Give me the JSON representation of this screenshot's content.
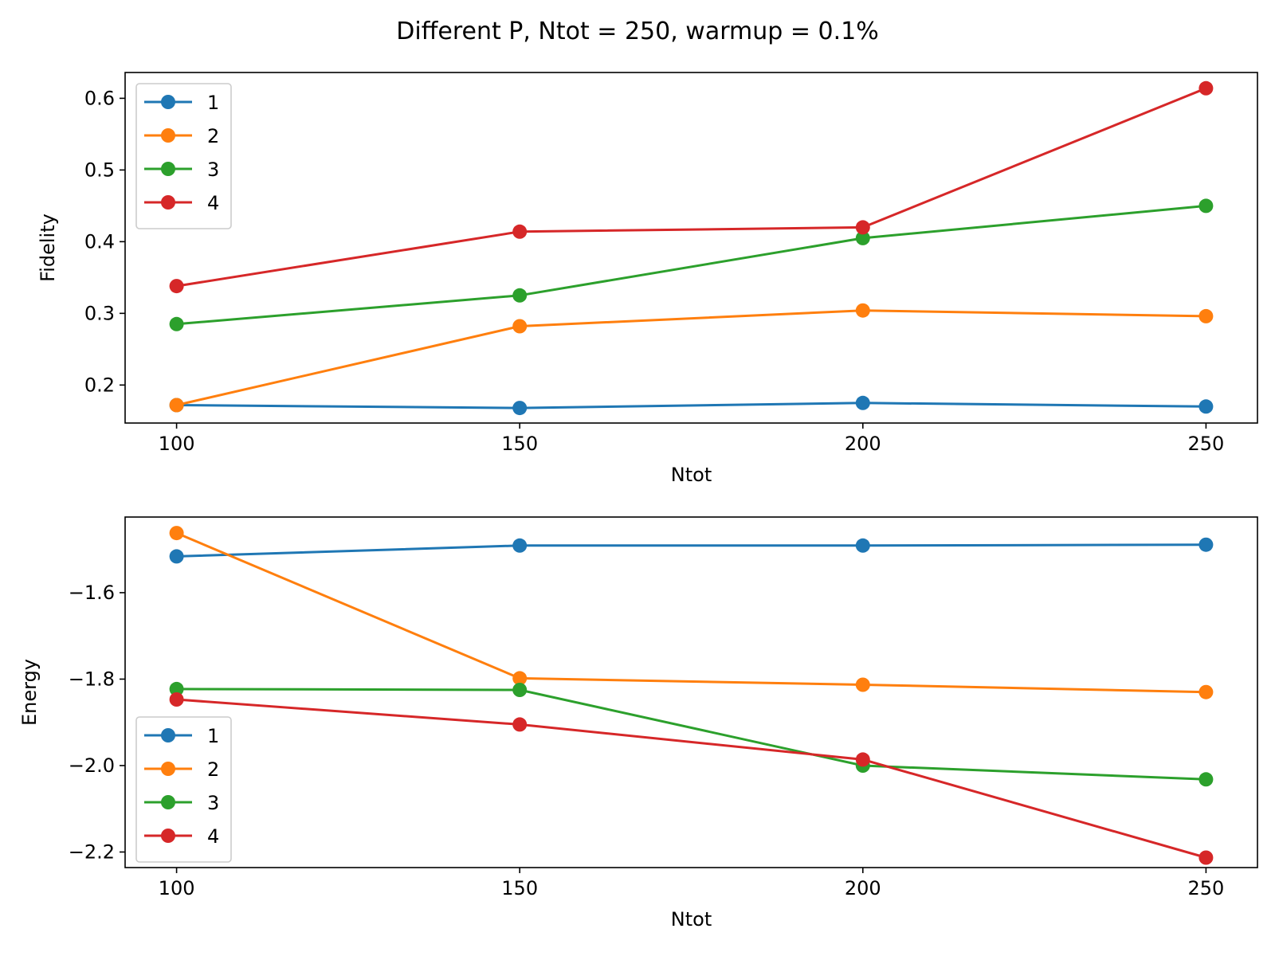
{
  "figure": {
    "title": "Different P, Ntot = 250, warmup = 0.1%"
  },
  "chart_data": [
    {
      "type": "line",
      "xlabel": "Ntot",
      "ylabel": "Fidelity",
      "x": [
        100,
        150,
        200,
        250
      ],
      "xticks": [
        100,
        150,
        200,
        250
      ],
      "xtick_labels": [
        "100",
        "150",
        "200",
        "250"
      ],
      "xlim": [
        92.5,
        257.5
      ],
      "yticks": [
        0.2,
        0.3,
        0.4,
        0.5,
        0.6
      ],
      "ytick_labels": [
        "0.2",
        "0.3",
        "0.4",
        "0.5",
        "0.6"
      ],
      "ylim": [
        0.147,
        0.636
      ],
      "grid": false,
      "legend_position": "upper-left",
      "series": [
        {
          "name": "1",
          "color": "#1f77b4",
          "values": [
            0.172,
            0.168,
            0.175,
            0.17
          ]
        },
        {
          "name": "2",
          "color": "#ff7f0e",
          "values": [
            0.172,
            0.282,
            0.304,
            0.296
          ]
        },
        {
          "name": "3",
          "color": "#2ca02c",
          "values": [
            0.285,
            0.325,
            0.405,
            0.45
          ]
        },
        {
          "name": "4",
          "color": "#d62728",
          "values": [
            0.338,
            0.414,
            0.42,
            0.614
          ]
        }
      ]
    },
    {
      "type": "line",
      "xlabel": "Ntot",
      "ylabel": "Energy",
      "x": [
        100,
        150,
        200,
        250
      ],
      "xticks": [
        100,
        150,
        200,
        250
      ],
      "xtick_labels": [
        "100",
        "150",
        "200",
        "250"
      ],
      "xlim": [
        92.5,
        257.5
      ],
      "yticks": [
        -1.6,
        -1.8,
        -2.0,
        -2.2
      ],
      "ytick_labels": [
        "−1.6",
        "−1.8",
        "−2.0",
        "−2.2"
      ],
      "ylim": [
        -2.236,
        -1.425
      ],
      "grid": false,
      "legend_position": "lower-left",
      "series": [
        {
          "name": "1",
          "color": "#1f77b4",
          "values": [
            -1.516,
            -1.491,
            -1.491,
            -1.489
          ]
        },
        {
          "name": "2",
          "color": "#ff7f0e",
          "values": [
            -1.462,
            -1.798,
            -1.813,
            -1.83
          ]
        },
        {
          "name": "3",
          "color": "#2ca02c",
          "values": [
            -1.823,
            -1.825,
            -2.0,
            -2.032
          ]
        },
        {
          "name": "4",
          "color": "#d62728",
          "values": [
            -1.847,
            -1.905,
            -1.986,
            -2.213
          ]
        }
      ]
    }
  ]
}
